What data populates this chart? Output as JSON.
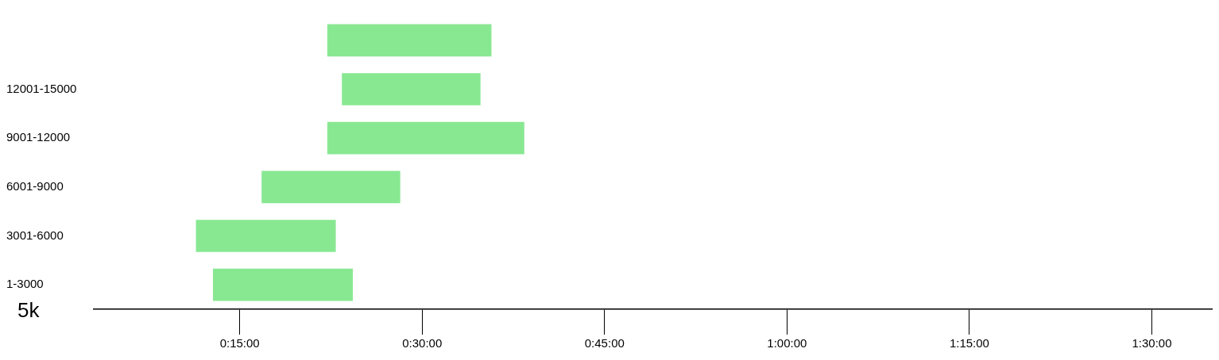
{
  "chart_data": {
    "type": "bar",
    "orientation": "horizontal",
    "title": "5k",
    "categories": [
      null,
      "12001-15000",
      "9001-12000",
      "6001-9000",
      "3001-6000",
      "1-3000"
    ],
    "base": [
      22.2,
      23.4,
      22.2,
      16.8,
      11.4,
      12.8
    ],
    "values": [
      13.5,
      11.4,
      16.2,
      11.4,
      11.5,
      11.5
    ],
    "color": "#88e892",
    "xlim": [
      3,
      95
    ],
    "xticks": [
      {
        "value": 15,
        "label": "0:15:00"
      },
      {
        "value": 30,
        "label": "0:30:00"
      },
      {
        "value": 45,
        "label": "0:45:00"
      },
      {
        "value": 60,
        "label": "1:00:00"
      },
      {
        "value": 75,
        "label": "1:15:00"
      },
      {
        "value": 90,
        "label": "1:30:00"
      }
    ]
  }
}
